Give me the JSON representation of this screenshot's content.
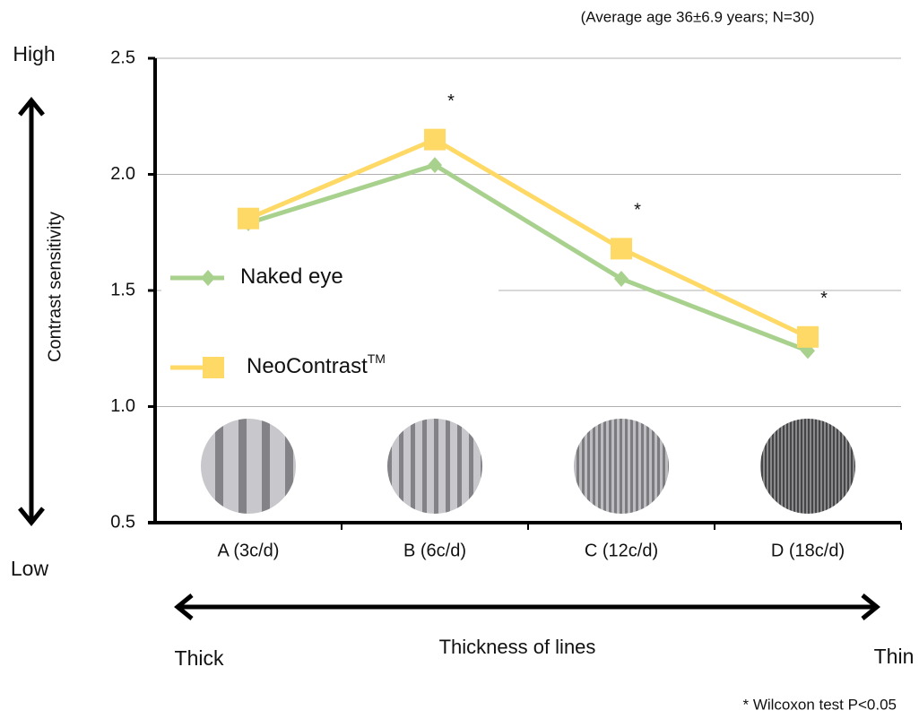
{
  "chart_data": {
    "type": "line",
    "subtitle": "(Average age 36±6.9 years; N=30)",
    "y_label": "Contrast sensitivity",
    "y_high": "High",
    "y_low": "Low",
    "x_label": "Thickness of lines",
    "x_left": "Thick",
    "x_right": "Thin",
    "footnote": "* Wilcoxon test P<0.05",
    "annotations": [
      null,
      "*",
      "*",
      "*"
    ],
    "categories": [
      "A (3c/d)",
      "B (6c/d)",
      "C (12c/d)",
      "D (18c/d)"
    ],
    "series": [
      {
        "name": "Naked eye",
        "color": "#a9d18e",
        "marker": "diamond",
        "values": [
          1.79,
          2.04,
          1.55,
          1.24
        ]
      },
      {
        "name": "NeoContrast",
        "name_superscript": "TM",
        "color": "#ffd966",
        "marker": "square",
        "values": [
          1.81,
          2.15,
          1.68,
          1.3
        ]
      }
    ],
    "ylim": [
      0.5,
      2.5
    ],
    "yticks": [
      0.5,
      {
        "value": 1.0,
        "label": "1.0"
      },
      1.5,
      {
        "value": 2.0,
        "label": "2.0"
      },
      2.5
    ],
    "grid": true
  }
}
